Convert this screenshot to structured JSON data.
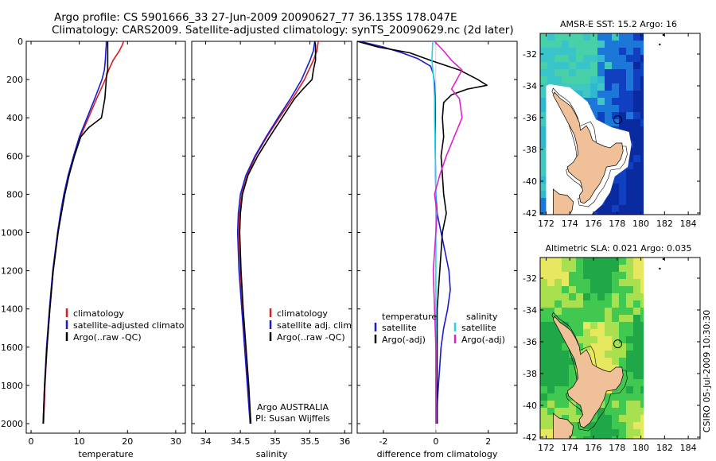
{
  "header": {
    "line1": "Argo profile: CS 5901666_33 27-Jun-2009 20090627_77 36.135S 178.047E",
    "line2": "Climatology: CARS2009. Satellite-adjusted climatology: synTS_20090629.nc (2d later)"
  },
  "side_label": "CSIRO 05-Jul-2009 10:30:30",
  "colors": {
    "climatology": "#d42020",
    "satellite": "#1a1ad0",
    "argo": "#000000",
    "cyan": "#22d6e6",
    "magenta": "#e020d0",
    "land": "#f0c098"
  },
  "chart_data": [
    {
      "id": "temperature",
      "type": "line",
      "xlabel": "temperature",
      "ylabel": "",
      "xlim": [
        -1,
        32
      ],
      "ylim": [
        2050,
        0
      ],
      "xticks": [
        0,
        10,
        20,
        30
      ],
      "yticks": [
        0,
        200,
        400,
        600,
        800,
        1000,
        1200,
        1400,
        1600,
        1800,
        2000
      ],
      "series": [
        {
          "name": "climatology",
          "color": "#d42020",
          "depth": [
            0,
            20,
            50,
            100,
            150,
            200,
            300,
            400,
            500,
            600,
            700,
            800,
            900,
            1000,
            1200,
            1400,
            1600,
            1800,
            2000
          ],
          "values": [
            19.2,
            18.9,
            18.3,
            17.0,
            16.1,
            15.4,
            13.6,
            11.9,
            10.2,
            8.9,
            7.8,
            6.9,
            6.2,
            5.6,
            4.6,
            3.9,
            3.3,
            2.9,
            2.6
          ]
        },
        {
          "name": "satellite-adjusted climatology",
          "color": "#1a1ad0",
          "depth": [
            0,
            20,
            50,
            100,
            150,
            200,
            300,
            400,
            500,
            600,
            700,
            800,
            900,
            1000,
            1200,
            1400,
            1600,
            1800,
            2000
          ],
          "values": [
            15.6,
            15.6,
            15.5,
            15.4,
            15.2,
            14.7,
            13.2,
            11.6,
            10.0,
            8.8,
            7.7,
            6.8,
            6.1,
            5.5,
            4.5,
            3.8,
            3.2,
            2.8,
            2.5
          ]
        },
        {
          "name": "Argo(..raw -QC)",
          "color": "#000000",
          "depth": [
            0,
            20,
            50,
            100,
            150,
            170,
            200,
            300,
            400,
            450,
            500,
            600,
            700,
            800,
            900,
            1000,
            1200,
            1400,
            1600,
            1800,
            2000
          ],
          "values": [
            15.9,
            15.9,
            15.9,
            15.9,
            15.9,
            15.7,
            15.6,
            15.3,
            14.6,
            12.0,
            10.3,
            9.0,
            7.9,
            7.0,
            6.3,
            5.6,
            4.6,
            3.9,
            3.3,
            2.8,
            2.5
          ]
        }
      ],
      "legend": {
        "placement": "bottom-left",
        "entries": [
          "climatology",
          "satellite-adjusted climatology",
          "Argo(..raw -QC)"
        ]
      }
    },
    {
      "id": "salinity",
      "type": "line",
      "xlabel": "salinity",
      "ylabel": "",
      "xlim": [
        33.8,
        36.1
      ],
      "ylim": [
        2050,
        0
      ],
      "xticks": [
        34,
        34.5,
        35,
        35.5,
        36
      ],
      "tick_labels": [
        "34",
        "34.5",
        "35",
        "35.5",
        "36"
      ],
      "series": [
        {
          "name": "climatology",
          "color": "#d42020",
          "depth": [
            0,
            50,
            100,
            200,
            300,
            400,
            500,
            600,
            700,
            800,
            900,
            1000,
            1200,
            1400,
            1600,
            1800,
            2000
          ],
          "values": [
            35.62,
            35.6,
            35.55,
            35.42,
            35.25,
            35.06,
            34.88,
            34.72,
            34.6,
            34.52,
            34.49,
            34.48,
            34.5,
            34.53,
            34.57,
            34.61,
            34.65
          ]
        },
        {
          "name": "satellite adj. clim.",
          "color": "#1a1ad0",
          "depth": [
            0,
            50,
            100,
            200,
            300,
            400,
            500,
            600,
            700,
            800,
            900,
            1000,
            1200,
            1400,
            1600,
            1800,
            2000
          ],
          "values": [
            35.57,
            35.55,
            35.5,
            35.38,
            35.22,
            35.04,
            34.87,
            34.71,
            34.58,
            34.5,
            34.47,
            34.46,
            34.48,
            34.52,
            34.56,
            34.6,
            34.64
          ]
        },
        {
          "name": "Argo(..raw -QC)",
          "color": "#000000",
          "depth": [
            0,
            20,
            50,
            100,
            150,
            200,
            250,
            300,
            400,
            500,
            600,
            700,
            800,
            900,
            1000,
            1200,
            1400,
            1600,
            1800,
            2000
          ],
          "values": [
            35.57,
            35.58,
            35.58,
            35.58,
            35.55,
            35.53,
            35.4,
            35.28,
            35.1,
            34.92,
            34.75,
            34.61,
            34.53,
            34.5,
            34.49,
            34.51,
            34.54,
            34.58,
            34.62,
            34.65
          ]
        }
      ],
      "legend": {
        "placement": "bottom-center",
        "entries": [
          "climatology",
          "satellite adj. clim.",
          "Argo(..raw -QC)"
        ]
      },
      "annotations": [
        "Argo AUSTRALIA",
        "PI: Susan Wijffels"
      ]
    },
    {
      "id": "difference",
      "type": "line",
      "xlabel": "difference from climatology",
      "ylabel": "",
      "xlim": [
        -3,
        3.1
      ],
      "ylim": [
        2050,
        0
      ],
      "xticks": [
        -2,
        0,
        2
      ],
      "series": [
        {
          "name": "temperature satellite",
          "color": "#1a1ad0",
          "depth": [
            0,
            30,
            60,
            90,
            130,
            170,
            220,
            300,
            400,
            500,
            600,
            700,
            800,
            900,
            1000,
            1100,
            1200,
            1300,
            1400,
            1500,
            1600,
            1700,
            1800,
            1900,
            2000
          ],
          "values": [
            -2.9,
            -2.0,
            -1.3,
            -0.7,
            -0.2,
            -0.1,
            -0.05,
            -0.03,
            -0.02,
            -0.03,
            -0.02,
            -0.01,
            0.0,
            0.05,
            0.2,
            0.35,
            0.5,
            0.55,
            0.45,
            0.3,
            0.2,
            0.15,
            0.1,
            0.05,
            0.05
          ]
        },
        {
          "name": "temperature Argo(-adj)",
          "color": "#000000",
          "depth": [
            0,
            30,
            60,
            100,
            150,
            200,
            230,
            250,
            280,
            320,
            400,
            500,
            600,
            700,
            800,
            900,
            1000,
            1200,
            1400,
            1600,
            1800,
            2000
          ],
          "values": [
            -3.0,
            -2.2,
            -1.0,
            -0.2,
            0.9,
            1.6,
            1.95,
            1.2,
            0.6,
            0.3,
            0.25,
            0.3,
            0.2,
            0.25,
            0.3,
            0.4,
            0.25,
            0.15,
            0.05,
            0.05,
            0.05,
            0.05
          ]
        },
        {
          "name": "salinity satellite",
          "color": "#22d6e6",
          "depth": [
            0,
            100,
            200,
            300,
            400,
            600,
            800,
            1000,
            1200,
            1400,
            1600,
            1800,
            2000
          ],
          "values": [
            -0.12,
            -0.15,
            -0.08,
            -0.05,
            -0.05,
            -0.02,
            0.0,
            0.0,
            0.0,
            0.0,
            0.0,
            0.0,
            0.0
          ]
        },
        {
          "name": "salinity Argo(-adj)",
          "color": "#e020d0",
          "depth": [
            0,
            50,
            100,
            150,
            200,
            250,
            300,
            400,
            500,
            600,
            700,
            800,
            900,
            1000,
            1200,
            1400,
            1600,
            1800,
            2000
          ],
          "values": [
            -0.05,
            0.3,
            0.6,
            1.0,
            0.8,
            0.6,
            0.9,
            1.0,
            0.7,
            0.4,
            0.15,
            -0.05,
            0.05,
            0.0,
            -0.1,
            -0.05,
            0.0,
            0.0,
            0.0
          ]
        }
      ],
      "legend": {
        "placement": "bottom-center",
        "headers": [
          "temperature",
          "salinity"
        ],
        "entries": [
          "satellite",
          "Argo(-adj)",
          "satellite",
          "Argo(-adj)"
        ]
      }
    }
  ],
  "maps": [
    {
      "id": "sst",
      "title": "AMSR-E SST: 15.2 Argo: 16",
      "xticks": [
        "172",
        "174",
        "176",
        "178",
        "180",
        "182",
        "184"
      ],
      "yticks": [
        "-32",
        "-34",
        "-36",
        "-38",
        "-40",
        "-42"
      ]
    },
    {
      "id": "sla",
      "title": "Altimetric SLA: 0.021 Argo: 0.035",
      "xticks": [
        "172",
        "174",
        "176",
        "178",
        "180",
        "182",
        "184"
      ],
      "yticks": [
        "-32",
        "-34",
        "-36",
        "-38",
        "-40",
        "-42"
      ]
    }
  ]
}
